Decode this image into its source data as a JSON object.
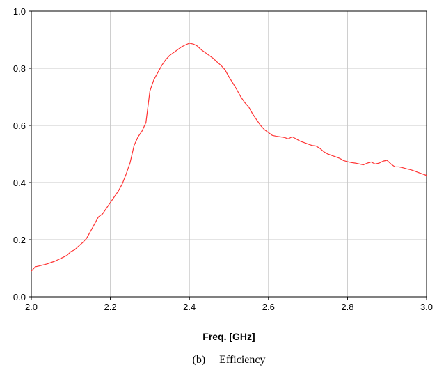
{
  "chart_data": {
    "type": "line",
    "title": "",
    "xlabel": "Freq. [GHz]",
    "ylabel": "",
    "caption": "(b)     Efficiency",
    "xlim": [
      2.0,
      3.0
    ],
    "ylim": [
      0.0,
      1.0
    ],
    "xticks": [
      2.0,
      2.2,
      2.4,
      2.6,
      2.8,
      3.0
    ],
    "xtick_labels": [
      "2.0",
      "2.2",
      "2.4",
      "2.6",
      "2.8",
      "3.0"
    ],
    "yticks": [
      0.0,
      0.2,
      0.4,
      0.6,
      0.8,
      1.0
    ],
    "ytick_labels": [
      "0.0",
      "0.2",
      "0.4",
      "0.6",
      "0.8",
      "1.0"
    ],
    "grid": true,
    "legend": "none",
    "series": [
      {
        "color": "#ff3333",
        "x": [
          2.0,
          2.01,
          2.02,
          2.04,
          2.06,
          2.08,
          2.09,
          2.1,
          2.11,
          2.12,
          2.13,
          2.14,
          2.16,
          2.17,
          2.18,
          2.19,
          2.2,
          2.21,
          2.22,
          2.23,
          2.24,
          2.25,
          2.26,
          2.27,
          2.28,
          2.29,
          2.3,
          2.31,
          2.32,
          2.33,
          2.34,
          2.35,
          2.36,
          2.37,
          2.38,
          2.39,
          2.4,
          2.41,
          2.42,
          2.43,
          2.44,
          2.45,
          2.46,
          2.47,
          2.48,
          2.49,
          2.5,
          2.51,
          2.52,
          2.53,
          2.54,
          2.55,
          2.56,
          2.57,
          2.58,
          2.59,
          2.6,
          2.61,
          2.62,
          2.63,
          2.64,
          2.65,
          2.66,
          2.67,
          2.68,
          2.69,
          2.7,
          2.71,
          2.72,
          2.73,
          2.74,
          2.75,
          2.76,
          2.77,
          2.78,
          2.79,
          2.8,
          2.81,
          2.82,
          2.83,
          2.84,
          2.85,
          2.86,
          2.87,
          2.88,
          2.89,
          2.9,
          2.91,
          2.92,
          2.93,
          2.94,
          2.95,
          2.96,
          2.97,
          2.98,
          2.99,
          3.0
        ],
        "y": [
          0.09,
          0.105,
          0.108,
          0.115,
          0.125,
          0.138,
          0.145,
          0.158,
          0.165,
          0.178,
          0.19,
          0.205,
          0.255,
          0.28,
          0.29,
          0.31,
          0.33,
          0.35,
          0.37,
          0.395,
          0.43,
          0.47,
          0.53,
          0.56,
          0.58,
          0.61,
          0.72,
          0.76,
          0.785,
          0.81,
          0.83,
          0.845,
          0.855,
          0.865,
          0.875,
          0.882,
          0.888,
          0.885,
          0.878,
          0.865,
          0.855,
          0.845,
          0.835,
          0.822,
          0.81,
          0.795,
          0.77,
          0.748,
          0.725,
          0.7,
          0.68,
          0.665,
          0.64,
          0.62,
          0.6,
          0.585,
          0.575,
          0.565,
          0.562,
          0.56,
          0.558,
          0.553,
          0.56,
          0.553,
          0.545,
          0.54,
          0.535,
          0.53,
          0.528,
          0.52,
          0.508,
          0.5,
          0.495,
          0.49,
          0.485,
          0.477,
          0.473,
          0.47,
          0.468,
          0.465,
          0.462,
          0.468,
          0.472,
          0.465,
          0.468,
          0.475,
          0.478,
          0.465,
          0.455,
          0.455,
          0.452,
          0.448,
          0.445,
          0.44,
          0.435,
          0.43,
          0.425
        ]
      }
    ]
  }
}
